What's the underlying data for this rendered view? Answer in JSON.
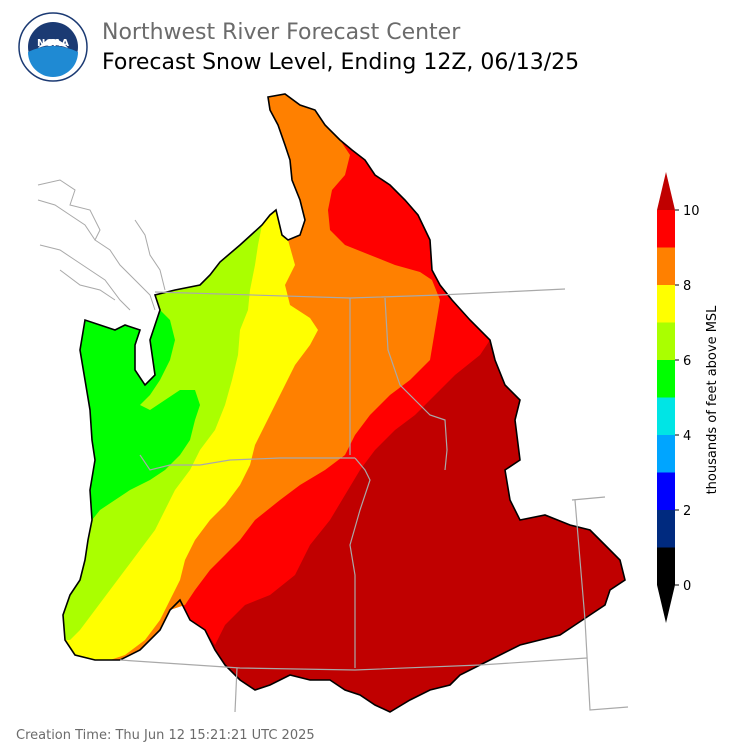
{
  "header": {
    "org_title": "Northwest River Forecast Center",
    "map_title": "Forecast Snow Level, Ending 12Z, 06/13/25",
    "logo": {
      "icon": "noaa-logo",
      "text": "NOAA",
      "ring_text": "NATIONAL OCEANIC AND ATMOSPHERIC ADMINISTRATION · U.S. DEPARTMENT OF COMMERCE"
    }
  },
  "colorbar": {
    "unit_label": "thousands of feet above MSL",
    "ticks": [
      "0",
      "2",
      "4",
      "6",
      "8",
      "10"
    ],
    "bins": [
      {
        "from": 0,
        "to": 1,
        "color": "#000000"
      },
      {
        "from": 1,
        "to": 2,
        "color": "#002a7f"
      },
      {
        "from": 2,
        "to": 3,
        "color": "#0000ff"
      },
      {
        "from": 3,
        "to": 4,
        "color": "#00a5ff"
      },
      {
        "from": 4,
        "to": 5,
        "color": "#00e5e5"
      },
      {
        "from": 5,
        "to": 6,
        "color": "#00ff00"
      },
      {
        "from": 6,
        "to": 7,
        "color": "#aaff00"
      },
      {
        "from": 7,
        "to": 8,
        "color": "#ffff00"
      },
      {
        "from": 8,
        "to": 9,
        "color": "#ff8000"
      },
      {
        "from": 9,
        "to": 10,
        "color": "#ff0000"
      }
    ],
    "under_color": "#000000",
    "over_color": "#c00000"
  },
  "map": {
    "legend_colors": {
      "green": "#00ff00",
      "yellow_green": "#aaff00",
      "yellow": "#ffff00",
      "orange": "#ff8000",
      "red": "#ff0000",
      "dark_red": "#c00000",
      "boundaries": "#a9a9a9",
      "outline": "#000000"
    }
  },
  "footer": {
    "creation_time": "Creation Time: Thu Jun 12 15:21:21 UTC 2025"
  }
}
